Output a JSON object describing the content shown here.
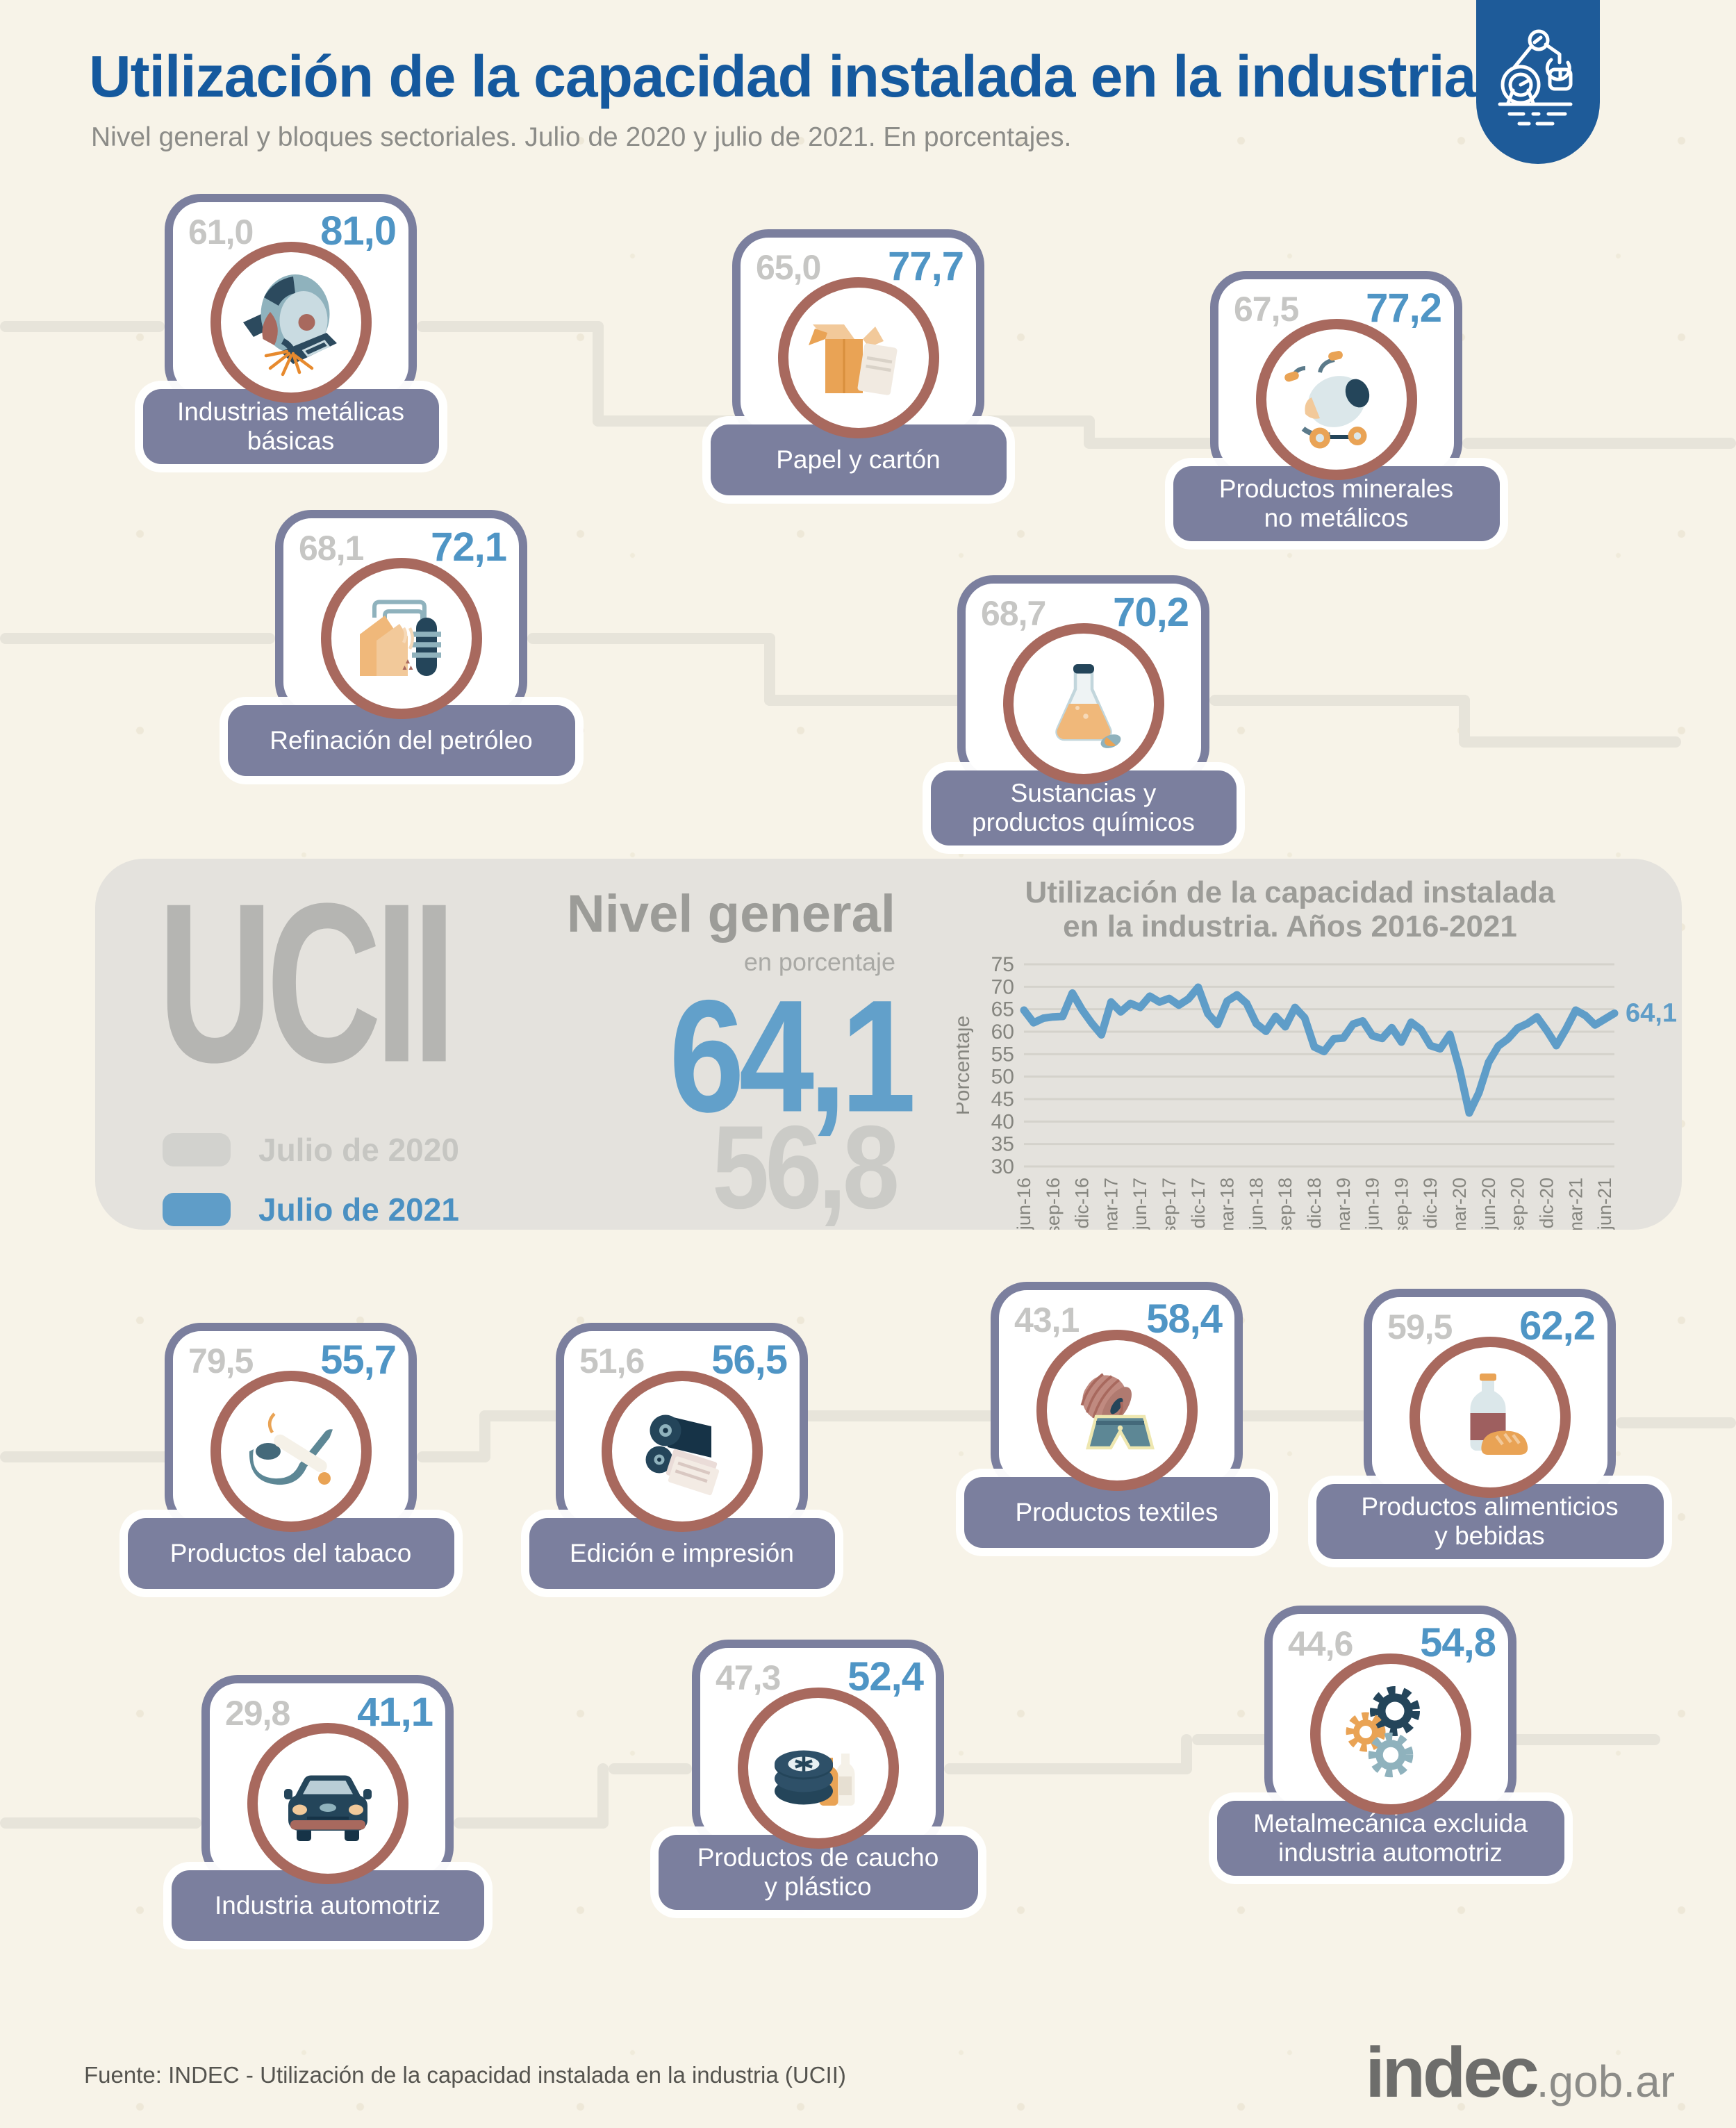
{
  "header": {
    "title": "Utilización de la capacidad instalada en la industria",
    "subtitle": "Nivel general y bloques sectoriales. Julio de 2020 y julio de 2021. En porcentajes.",
    "badge_icon": "industrial-robot-icon"
  },
  "legend": {
    "item_2020": "Julio de 2020",
    "item_2021": "Julio de 2021"
  },
  "summary": {
    "acronym": "UCII",
    "label": "Nivel general",
    "unit": "en porcentaje",
    "value_2021": "64,1",
    "value_2020": "56,8"
  },
  "cards": [
    {
      "label": "Industrias metálicas\nbásicas",
      "v2020": "61,0",
      "v2021": "81,0",
      "icon": "grinding-wheel-icon"
    },
    {
      "label": "Papel y cartón",
      "v2020": "65,0",
      "v2021": "77,7",
      "icon": "cardboard-box-icon"
    },
    {
      "label": "Productos minerales\nno metálicos",
      "v2020": "67,5",
      "v2021": "77,2",
      "icon": "cement-mixer-icon"
    },
    {
      "label": "Refinación del petróleo",
      "v2020": "68,1",
      "v2021": "72,1",
      "icon": "oil-refinery-icon"
    },
    {
      "label": "Sustancias y\nproductos químicos",
      "v2020": "68,7",
      "v2021": "70,2",
      "icon": "chemical-flask-icon"
    },
    {
      "label": "Productos del tabaco",
      "v2020": "79,5",
      "v2021": "55,7",
      "icon": "tobacco-pipe-icon"
    },
    {
      "label": "Edición e impresión",
      "v2020": "51,6",
      "v2021": "56,5",
      "icon": "printing-press-icon"
    },
    {
      "label": "Productos textiles",
      "v2020": "43,1",
      "v2021": "58,4",
      "icon": "textile-roll-icon"
    },
    {
      "label": "Productos alimenticios\ny bebidas",
      "v2020": "59,5",
      "v2021": "62,2",
      "icon": "bottle-bread-icon"
    },
    {
      "label": "Industria automotriz",
      "v2020": "29,8",
      "v2021": "41,1",
      "icon": "car-icon"
    },
    {
      "label": "Productos de caucho\ny plástico",
      "v2020": "47,3",
      "v2021": "52,4",
      "icon": "tires-bottles-icon"
    },
    {
      "label": "Metalmecánica excluida\nindustria automotriz",
      "v2020": "44,6",
      "v2021": "54,8",
      "icon": "gears-icon"
    }
  ],
  "chart_data": {
    "type": "line",
    "title_line1": "Utilización de la capacidad instalada",
    "title_line2": "en la industria. Años 2016-2021",
    "ylabel": "Porcentaje",
    "ylim": [
      30,
      75
    ],
    "y_ticks": [
      30,
      35,
      40,
      45,
      50,
      55,
      60,
      65,
      70,
      75
    ],
    "x_start": "jun-16",
    "x_end": "jul-21",
    "x_tick_every": 3,
    "x_tick_labels": [
      "jun-16",
      "sep-16",
      "dic-16",
      "mar-17",
      "jun-17",
      "sep-17",
      "dic-17",
      "mar-18",
      "jun-18",
      "sep-18",
      "dic-18",
      "mar-19",
      "jun-19",
      "sep-19",
      "dic-19",
      "mar-20",
      "jun-20",
      "sep-20",
      "dic-20",
      "mar-21",
      "jun-21"
    ],
    "values": [
      64.8,
      62.0,
      63.0,
      63.3,
      63.4,
      68.6,
      64.9,
      61.9,
      59.3,
      66.6,
      64.4,
      66.3,
      65.4,
      67.9,
      66.6,
      67.4,
      65.9,
      67.3,
      69.9,
      64.0,
      61.6,
      66.8,
      68.2,
      66.3,
      61.8,
      60.1,
      63.4,
      61.1,
      65.4,
      63.1,
      56.6,
      55.6,
      58.4,
      58.6,
      61.7,
      62.4,
      59.1,
      58.5,
      60.9,
      57.7,
      62.1,
      60.5,
      56.9,
      56.2,
      59.4,
      51.7,
      41.9,
      46.4,
      53.2,
      56.8,
      58.4,
      60.8,
      61.8,
      63.3,
      60.3,
      56.9,
      60.6,
      64.8,
      63.6,
      61.5,
      62.8,
      64.1
    ],
    "end_label": "64,1",
    "line_color": "#5f9dc8",
    "grid_color": "#d4d2cb",
    "tick_color": "#85857f",
    "legend_position": "left-of-chart",
    "grid": true
  },
  "footer": {
    "source": "Fuente: INDEC - Utilización de la capacidad instalada en la industria (UCII)",
    "brand": "indec",
    "brand_suffix": ".gob.ar"
  },
  "colors": {
    "background": "#f7f3e8",
    "title_blue": "#15599e",
    "slate": "#7b7f9e",
    "ring_rose": "#a8695e",
    "value_2020_gray": "#c6c6c4",
    "value_2021_blue": "#4f95c5",
    "block_gray": "#e4e2dd",
    "badge_blue": "#1e5b99",
    "line_blue": "#5f9dc8"
  }
}
